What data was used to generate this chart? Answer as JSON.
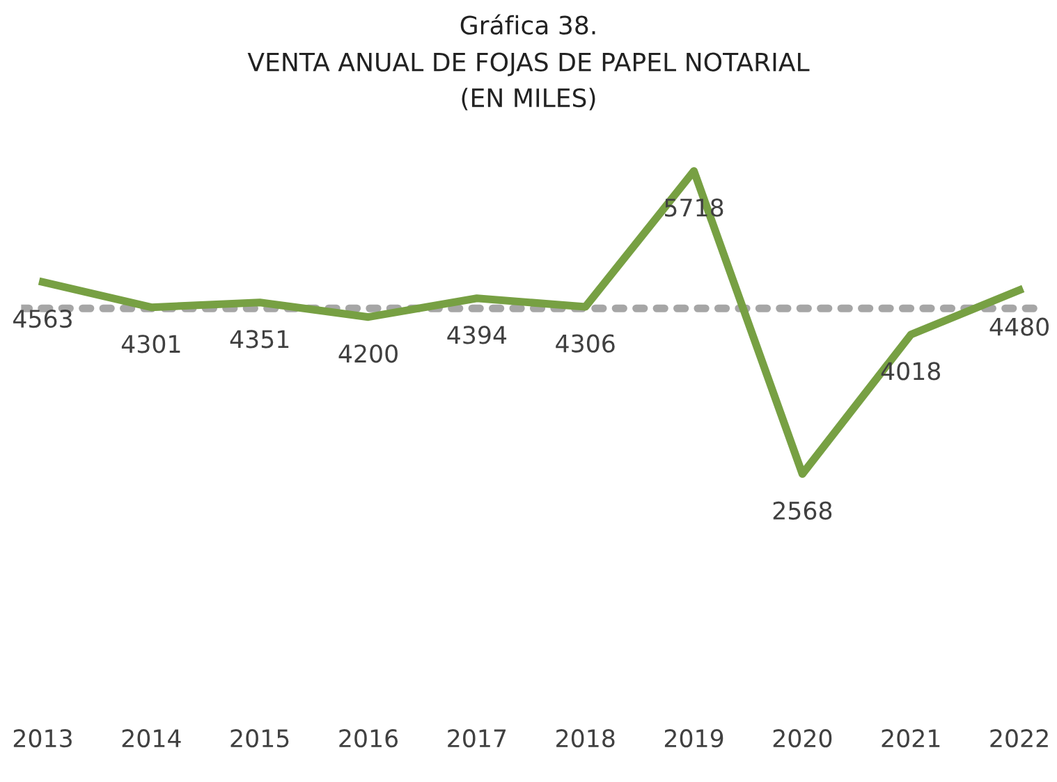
{
  "chart_data": {
    "type": "line",
    "title": "Gráfica 38.",
    "subtitle": "VENTA ANUAL DE FOJAS DE PAPEL NOTARIAL\n(EN MILES)",
    "categories": [
      "2013",
      "2014",
      "2015",
      "2016",
      "2017",
      "2018",
      "2019",
      "2020",
      "2021",
      "2022"
    ],
    "series": [
      {
        "color": "#77a043",
        "values": [
          4563,
          4301,
          4351,
          4200,
          4394,
          4306,
          5718,
          2568,
          4018,
          4480
        ]
      }
    ],
    "ref_lines": [
      {
        "axis": "y",
        "value": 4290,
        "color": "#a6a6a6",
        "line_style": "dotted"
      }
    ],
    "data_labels": true,
    "grid": false,
    "legend": false,
    "marker": "none",
    "line_style": "solid",
    "tick_labels": "x"
  }
}
